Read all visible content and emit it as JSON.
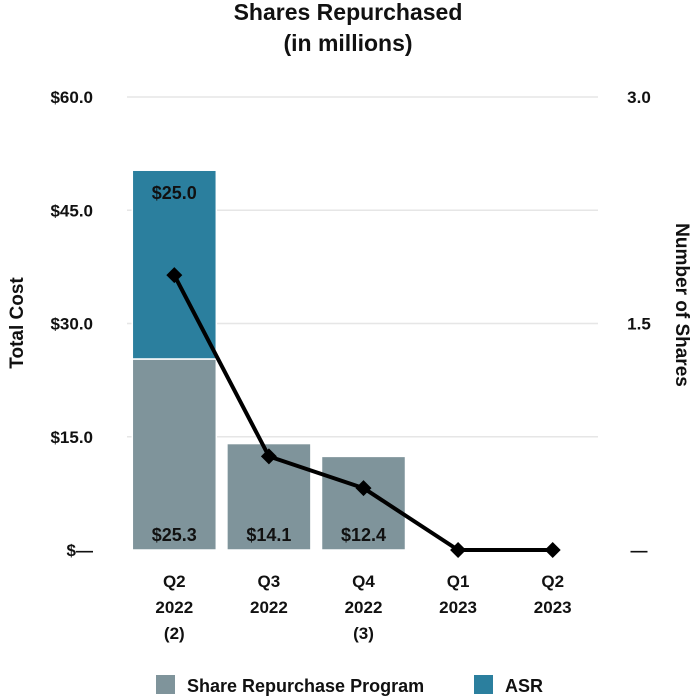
{
  "chart_data": {
    "type": "bar",
    "title_lines": [
      "Shares Repurchased",
      "(in millions)"
    ],
    "categories": [
      [
        "Q2",
        "2022",
        "(2)"
      ],
      [
        "Q3",
        "2022"
      ],
      [
        "Q4",
        "2022",
        "(3)"
      ],
      [
        "Q1",
        "2023"
      ],
      [
        "Q2",
        "2023"
      ]
    ],
    "stacked": true,
    "series": [
      {
        "name": "Share Repurchase Program",
        "color": "#7f949b",
        "values": [
          25.3,
          14.1,
          12.4,
          0,
          0
        ],
        "labels": [
          "$25.3",
          "$14.1",
          "$12.4",
          "",
          ""
        ]
      },
      {
        "name": "ASR",
        "color": "#2b7f9e",
        "values": [
          25.0,
          0,
          0,
          0,
          0
        ],
        "labels": [
          "$25.0",
          "",
          "",
          "",
          ""
        ]
      }
    ],
    "line_series": {
      "name": "Number of Shares",
      "axis": "right",
      "color": "#000000",
      "values": [
        1.82,
        0.62,
        0.41,
        0.0,
        0.0
      ]
    },
    "ylabel": "Total Cost",
    "y2label": "Number of Shares",
    "ylim": [
      0,
      60
    ],
    "y2lim": [
      0,
      3
    ],
    "yticks": [
      "$—",
      "$15.0",
      "$30.0",
      "$45.0",
      "$60.0"
    ],
    "y2ticks": [
      "—",
      "1.5",
      "3.0"
    ],
    "grid": true,
    "legend_position": "bottom"
  }
}
